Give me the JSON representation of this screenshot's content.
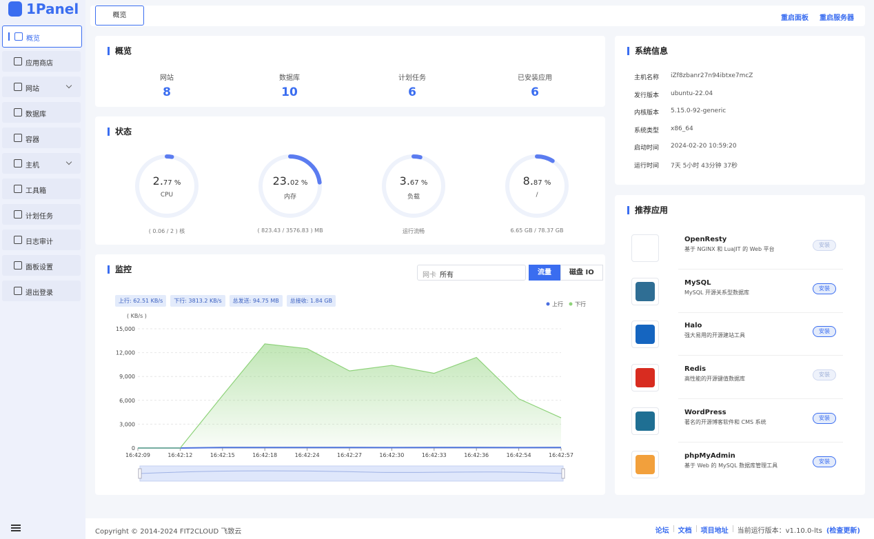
{
  "brand": "1Panel",
  "sidebar": {
    "items": [
      {
        "label": "概览",
        "active": true
      },
      {
        "label": "应用商店"
      },
      {
        "label": "网站",
        "submenu": true
      },
      {
        "label": "数据库"
      },
      {
        "label": "容器"
      },
      {
        "label": "主机",
        "submenu": true
      },
      {
        "label": "工具箱"
      },
      {
        "label": "计划任务"
      },
      {
        "label": "日志审计"
      },
      {
        "label": "面板设置"
      },
      {
        "label": "退出登录"
      }
    ]
  },
  "topbar": {
    "tab": "概览",
    "actions": [
      "重启面板",
      "重启服务器"
    ]
  },
  "overview": {
    "title": "概览",
    "stats": [
      {
        "label": "网站",
        "value": 8
      },
      {
        "label": "数据库",
        "value": 10
      },
      {
        "label": "计划任务",
        "value": 6
      },
      {
        "label": "已安装应用",
        "value": 6
      }
    ]
  },
  "status": {
    "title": "状态",
    "gauges": [
      {
        "value": 2.77,
        "major": "2.",
        "minor": "77 %",
        "label": "CPU",
        "detail": "( 0.06 / 2 ) 核"
      },
      {
        "value": 23.02,
        "major": "23.",
        "minor": "02 %",
        "label": "内存",
        "detail": "( 823.43 / 3576.83 ) MB"
      },
      {
        "value": 3.67,
        "major": "3.",
        "minor": "67 %",
        "label": "负载",
        "detail": "运行流畅"
      },
      {
        "value": 8.87,
        "major": "8.",
        "minor": "87 %",
        "label": "/",
        "detail": "6.65 GB / 78.37 GB"
      }
    ]
  },
  "monitor": {
    "title": "监控",
    "select_label": "网卡",
    "select_value": "所有",
    "buttons": [
      "流量",
      "磁盘 IO"
    ],
    "chips": [
      "上行: 62.51 KB/s",
      "下行: 3813.2 KB/s",
      "总发送: 94.75 MB",
      "总接收: 1.84 GB"
    ],
    "chart": {
      "type": "line",
      "y_label": "( KB/s )",
      "x": [
        "16:42:09",
        "16:42:12",
        "16:42:15",
        "16:42:18",
        "16:42:24",
        "16:42:27",
        "16:42:30",
        "16:42:33",
        "16:42:36",
        "16:42:54",
        "16:42:57"
      ],
      "series": [
        {
          "name": "上行",
          "color": "#4a6ee0",
          "values": [
            0,
            0,
            60,
            60,
            70,
            60,
            50,
            60,
            60,
            50,
            60
          ]
        },
        {
          "name": "下行",
          "color": "#8ed27a",
          "values": [
            0,
            0,
            6600,
            13100,
            12500,
            9700,
            10400,
            9400,
            11400,
            6200,
            3800
          ]
        }
      ],
      "ylim": [
        0,
        15000
      ],
      "yticks": [
        0,
        {
          "value": 3000,
          "label": "3,000"
        },
        {
          "value": 6000,
          "label": "6,000"
        },
        {
          "value": 9000,
          "label": "9,000"
        },
        {
          "value": 12000,
          "label": "12,000"
        },
        {
          "value": 15000,
          "label": "15,000"
        }
      ],
      "grid": true
    }
  },
  "sysinfo": {
    "title": "系统信息",
    "rows": [
      [
        "主机名称",
        "iZf8zbanr27n94ibtxe7mcZ"
      ],
      [
        "发行版本",
        "ubuntu-22.04"
      ],
      [
        "内核版本",
        "5.15.0-92-generic"
      ],
      [
        "系统类型",
        "x86_64"
      ],
      [
        "启动时间",
        "2024-02-20 10:59:20"
      ],
      [
        "运行时间",
        "7天 5小时 43分钟 37秒"
      ]
    ]
  },
  "recommend": {
    "title": "推荐应用",
    "apps": [
      {
        "name": "OpenResty",
        "desc": "基于 NGINX 和 LuaJIT 的 Web 平台",
        "button": "安装",
        "enabled": false,
        "color": "#ffffff"
      },
      {
        "name": "MySQL",
        "desc": "MySQL 开源关系型数据库",
        "button": "安装",
        "enabled": true,
        "color": "#2f6e94"
      },
      {
        "name": "Halo",
        "desc": "强大易用的开源建站工具",
        "button": "安装",
        "enabled": true,
        "color": "#1565c0"
      },
      {
        "name": "Redis",
        "desc": "高性能的开源键值数据库",
        "button": "安装",
        "enabled": false,
        "color": "#d82c20"
      },
      {
        "name": "WordPress",
        "desc": "著名的开源博客软件和 CMS 系统",
        "button": "安装",
        "enabled": true,
        "color": "#1f6f93"
      },
      {
        "name": "phpMyAdmin",
        "desc": "基于 Web 的 MySQL 数据库管理工具",
        "button": "安装",
        "enabled": true,
        "color": "#f2a03c"
      }
    ]
  },
  "footer": {
    "copyright": "Copyright © 2014-2024 FIT2CLOUD 飞致云",
    "links": [
      "论坛",
      "文档",
      "项目地址"
    ],
    "version": "当前运行版本：v1.10.0-lts",
    "update": "(检查更新)"
  }
}
